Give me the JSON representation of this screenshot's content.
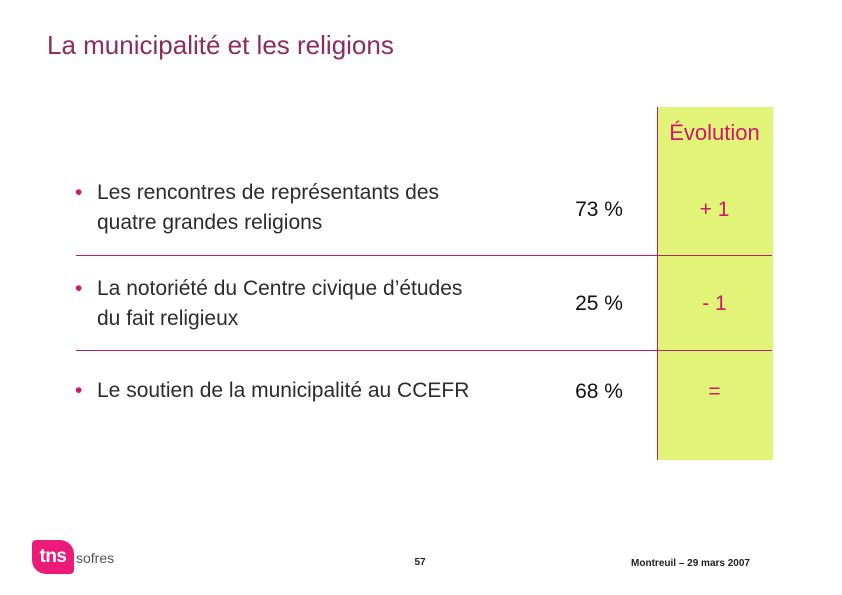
{
  "slide": {
    "title": "La municipalité et les religions",
    "evolution_header": "Évolution",
    "bullet_glyph": "•"
  },
  "rows": [
    {
      "label_line1": "Les rencontres de représentants des",
      "label_line2": "quatre grandes religions",
      "percent": "73 %",
      "evolution": "+ 1"
    },
    {
      "label_line1": "La notoriété du Centre civique  d’études",
      "label_line2": "du fait religieux",
      "percent": "25 %",
      "evolution": "- 1"
    },
    {
      "label_line1": "Le soutien de la municipalité au CCEFR",
      "label_line2": "",
      "percent": "68 %",
      "evolution": "="
    }
  ],
  "footer": {
    "logo_mark": "tns",
    "logo_text": "sofres",
    "page_number": "57",
    "date": "Montreuil – 29 mars 2007"
  },
  "colors": {
    "title": "#8b2d5e",
    "accent": "#d0166e",
    "evolution_bg": "#e2f478",
    "logo": "#ec1a78"
  }
}
